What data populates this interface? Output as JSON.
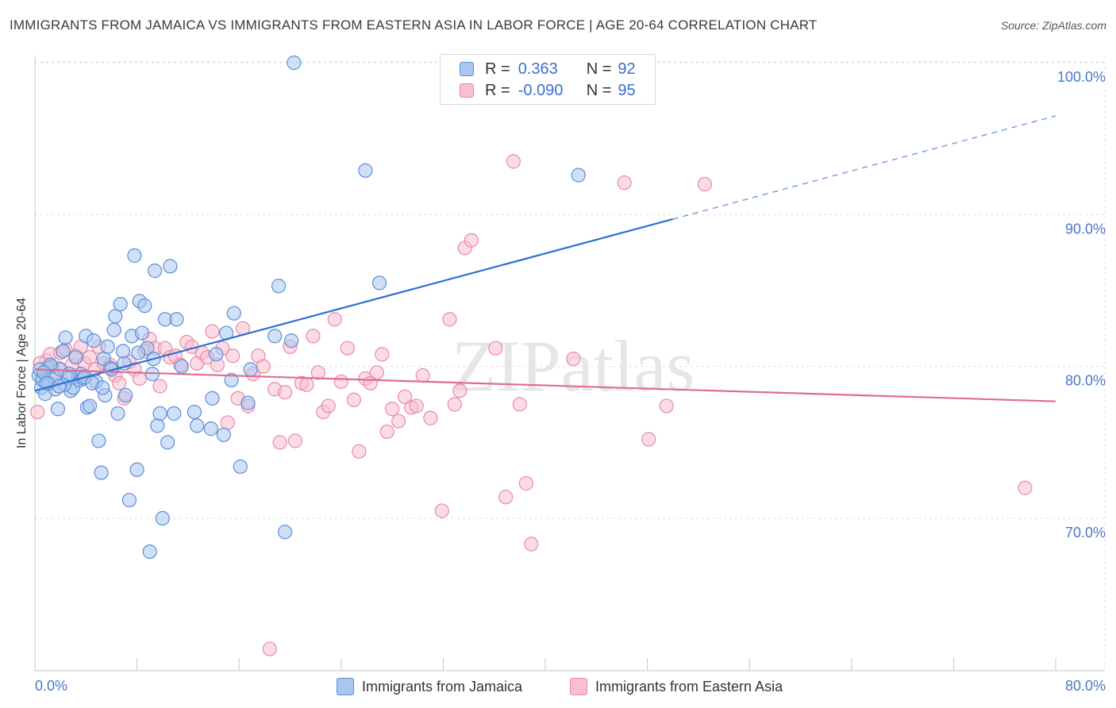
{
  "title": "IMMIGRANTS FROM JAMAICA VS IMMIGRANTS FROM EASTERN ASIA IN LABOR FORCE | AGE 20-64 CORRELATION CHART",
  "source": "Source: ZipAtlas.com",
  "watermark": "ZIPatlas",
  "legend": {
    "series1": {
      "r_label": "R =",
      "r_value": "0.363",
      "n_label": "N =",
      "n_value": "92"
    },
    "series2": {
      "r_label": "R =",
      "r_value": "-0.090",
      "n_label": "N =",
      "n_value": "95"
    }
  },
  "bottom_legend": {
    "series1": "Immigrants from Jamaica",
    "series2": "Immigrants from Eastern Asia"
  },
  "colors": {
    "blue_fill": "#a9c6f0",
    "blue_stroke": "#5b8fd6",
    "blue_line": "#2f6fd3",
    "pink_fill": "#f7bfd0",
    "pink_stroke": "#e98aa8",
    "pink_line": "#e06b95",
    "tick_text": "#4a78c8",
    "grid": "#dddddd"
  },
  "chart_data": {
    "type": "scatter",
    "title": "IMMIGRANTS FROM JAMAICA VS IMMIGRANTS FROM EASTERN ASIA IN LABOR FORCE | AGE 20-64 CORRELATION CHART",
    "xlabel": "",
    "ylabel": "In Labor Force | Age 20-64",
    "xlim": [
      0,
      80
    ],
    "ylim": [
      60,
      102
    ],
    "x_tick_labels": {
      "left": "0.0%",
      "right": "80.0%"
    },
    "y_ticks": [
      {
        "value": 70,
        "label": "70.0%"
      },
      {
        "value": 80,
        "label": "80.0%"
      },
      {
        "value": 90,
        "label": "90.0%"
      },
      {
        "value": 100,
        "label": "100.0%"
      }
    ],
    "grid": true,
    "legend_position": "top-center",
    "series": [
      {
        "name": "Immigrants from Jamaica",
        "r": 0.363,
        "n": 92,
        "trend": {
          "x0": 0,
          "y0": 78.4,
          "x1": 50,
          "y1": 89.7,
          "dashed_to_x": 80,
          "dashed_to_y": 96.5
        },
        "points": [
          [
            0.3,
            79.4
          ],
          [
            0.5,
            78.6
          ],
          [
            0.6,
            79.1
          ],
          [
            0.8,
            78.2
          ],
          [
            1.0,
            79.9
          ],
          [
            1.1,
            78.9
          ],
          [
            1.3,
            80.0
          ],
          [
            1.5,
            79.3
          ],
          [
            1.6,
            78.5
          ],
          [
            1.8,
            77.2
          ],
          [
            2.0,
            79.8
          ],
          [
            2.2,
            81.0
          ],
          [
            2.4,
            81.9
          ],
          [
            2.6,
            79.2
          ],
          [
            2.8,
            78.4
          ],
          [
            3.0,
            78.6
          ],
          [
            3.2,
            80.6
          ],
          [
            3.4,
            79.3
          ],
          [
            3.5,
            79.1
          ],
          [
            3.6,
            79.5
          ],
          [
            3.8,
            79.2
          ],
          [
            4.0,
            82.0
          ],
          [
            4.1,
            77.3
          ],
          [
            4.3,
            77.4
          ],
          [
            4.6,
            81.7
          ],
          [
            4.8,
            79.0
          ],
          [
            5.0,
            75.1
          ],
          [
            5.2,
            73.0
          ],
          [
            5.4,
            80.5
          ],
          [
            5.5,
            78.1
          ],
          [
            5.7,
            81.3
          ],
          [
            5.9,
            79.9
          ],
          [
            6.2,
            82.4
          ],
          [
            6.3,
            83.3
          ],
          [
            6.5,
            76.9
          ],
          [
            6.7,
            84.1
          ],
          [
            6.9,
            81.0
          ],
          [
            7.1,
            78.1
          ],
          [
            7.4,
            71.2
          ],
          [
            7.6,
            82.0
          ],
          [
            7.8,
            87.3
          ],
          [
            8.0,
            73.2
          ],
          [
            8.2,
            84.3
          ],
          [
            8.4,
            82.2
          ],
          [
            8.6,
            84.0
          ],
          [
            8.8,
            81.2
          ],
          [
            9.0,
            67.8
          ],
          [
            9.2,
            79.5
          ],
          [
            9.4,
            86.3
          ],
          [
            9.6,
            76.1
          ],
          [
            9.8,
            76.9
          ],
          [
            10.0,
            70.0
          ],
          [
            10.2,
            83.1
          ],
          [
            10.4,
            75.0
          ],
          [
            10.6,
            86.6
          ],
          [
            10.9,
            76.9
          ],
          [
            11.1,
            83.1
          ],
          [
            12.5,
            77.0
          ],
          [
            12.7,
            76.1
          ],
          [
            13.8,
            75.9
          ],
          [
            13.9,
            77.9
          ],
          [
            14.2,
            80.8
          ],
          [
            14.8,
            75.5
          ],
          [
            15.0,
            82.2
          ],
          [
            15.4,
            79.1
          ],
          [
            15.6,
            83.5
          ],
          [
            16.1,
            73.4
          ],
          [
            16.7,
            77.6
          ],
          [
            16.9,
            79.8
          ],
          [
            18.8,
            82.0
          ],
          [
            19.1,
            85.3
          ],
          [
            19.6,
            69.1
          ],
          [
            20.1,
            81.7
          ],
          [
            20.3,
            100.0
          ],
          [
            25.9,
            92.9
          ],
          [
            27.0,
            85.5
          ],
          [
            42.6,
            92.6
          ],
          [
            1.2,
            80.1
          ],
          [
            2.3,
            78.8
          ],
          [
            3.9,
            79.3
          ],
          [
            0.4,
            79.8
          ],
          [
            0.7,
            79.6
          ],
          [
            1.9,
            78.7
          ],
          [
            2.7,
            79.5
          ],
          [
            4.5,
            78.9
          ],
          [
            5.3,
            78.6
          ],
          [
            6.0,
            79.8
          ],
          [
            7.0,
            80.2
          ],
          [
            8.1,
            80.9
          ],
          [
            9.3,
            80.5
          ],
          [
            11.5,
            80.0
          ],
          [
            0.9,
            78.9
          ]
        ]
      },
      {
        "name": "Immigrants from Eastern Asia",
        "r": -0.09,
        "n": 95,
        "trend": {
          "x0": 0,
          "y0": 79.8,
          "x1": 80,
          "y1": 77.7
        },
        "points": [
          [
            0.2,
            77.0
          ],
          [
            0.6,
            79.2
          ],
          [
            0.9,
            80.4
          ],
          [
            1.2,
            80.8
          ],
          [
            1.5,
            79.6
          ],
          [
            2.0,
            80.9
          ],
          [
            2.4,
            81.1
          ],
          [
            2.9,
            80.1
          ],
          [
            3.2,
            80.7
          ],
          [
            3.6,
            81.3
          ],
          [
            3.9,
            80.2
          ],
          [
            4.3,
            80.6
          ],
          [
            4.7,
            79.8
          ],
          [
            5.0,
            81.3
          ],
          [
            5.4,
            80.2
          ],
          [
            5.9,
            80.1
          ],
          [
            6.3,
            79.4
          ],
          [
            6.6,
            78.9
          ],
          [
            7.0,
            77.9
          ],
          [
            7.4,
            80.3
          ],
          [
            7.8,
            79.8
          ],
          [
            8.2,
            79.2
          ],
          [
            8.6,
            81.0
          ],
          [
            9.0,
            81.8
          ],
          [
            9.4,
            81.2
          ],
          [
            9.8,
            78.7
          ],
          [
            10.2,
            81.2
          ],
          [
            10.6,
            80.6
          ],
          [
            11.0,
            80.7
          ],
          [
            11.4,
            80.1
          ],
          [
            11.9,
            81.6
          ],
          [
            12.3,
            81.3
          ],
          [
            12.7,
            80.2
          ],
          [
            13.1,
            80.9
          ],
          [
            13.5,
            80.6
          ],
          [
            13.9,
            82.3
          ],
          [
            14.3,
            80.1
          ],
          [
            14.7,
            81.2
          ],
          [
            15.1,
            76.3
          ],
          [
            15.5,
            80.7
          ],
          [
            15.9,
            77.9
          ],
          [
            16.3,
            82.5
          ],
          [
            16.7,
            77.4
          ],
          [
            17.1,
            79.5
          ],
          [
            17.5,
            80.7
          ],
          [
            17.9,
            80.0
          ],
          [
            18.4,
            61.4
          ],
          [
            18.8,
            78.5
          ],
          [
            19.2,
            75.0
          ],
          [
            19.6,
            78.3
          ],
          [
            20.0,
            81.3
          ],
          [
            20.4,
            75.1
          ],
          [
            20.9,
            78.9
          ],
          [
            21.3,
            78.8
          ],
          [
            21.8,
            82.0
          ],
          [
            22.2,
            79.6
          ],
          [
            22.6,
            77.0
          ],
          [
            23.0,
            77.4
          ],
          [
            23.5,
            83.1
          ],
          [
            24.0,
            79.0
          ],
          [
            24.5,
            81.2
          ],
          [
            25.0,
            77.8
          ],
          [
            25.4,
            74.4
          ],
          [
            25.9,
            79.2
          ],
          [
            26.3,
            78.9
          ],
          [
            26.8,
            79.6
          ],
          [
            27.2,
            80.8
          ],
          [
            27.6,
            75.7
          ],
          [
            28.0,
            77.2
          ],
          [
            28.5,
            76.4
          ],
          [
            29.0,
            78.0
          ],
          [
            29.5,
            77.3
          ],
          [
            29.9,
            77.4
          ],
          [
            30.4,
            79.4
          ],
          [
            31.0,
            76.6
          ],
          [
            31.9,
            70.5
          ],
          [
            32.5,
            83.1
          ],
          [
            32.9,
            77.5
          ],
          [
            33.3,
            78.4
          ],
          [
            33.7,
            87.8
          ],
          [
            34.2,
            88.3
          ],
          [
            36.1,
            81.2
          ],
          [
            36.9,
            71.4
          ],
          [
            37.5,
            93.5
          ],
          [
            38.0,
            77.5
          ],
          [
            38.5,
            72.3
          ],
          [
            38.9,
            68.3
          ],
          [
            42.2,
            80.5
          ],
          [
            46.2,
            92.1
          ],
          [
            48.1,
            75.2
          ],
          [
            49.5,
            77.4
          ],
          [
            52.5,
            92.0
          ],
          [
            77.6,
            72.0
          ],
          [
            0.4,
            80.2
          ],
          [
            1.8,
            79.9
          ]
        ]
      }
    ]
  }
}
